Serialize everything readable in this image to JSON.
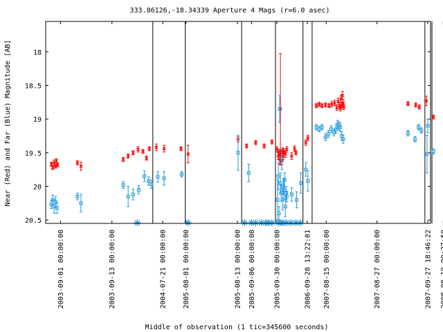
{
  "chart_data": {
    "type": "scatter",
    "title": "333.86126,-18.34339   Aperture 4 Mags (r=6.0 asec)",
    "xlabel": "Middle of observation (1 tic=345600 seconds)",
    "ylabel": "Near (Red) and Far (Blue) Magnitude [AB]",
    "ylim": [
      20.55,
      17.55
    ],
    "y_reversed": true,
    "xlim": [
      0,
      546
    ],
    "yticks": [
      "18",
      "18.5",
      "19",
      "19.5",
      "20",
      "20.5"
    ],
    "ytick_values": [
      18,
      18.5,
      19,
      19.5,
      20,
      20.5
    ],
    "xticks": [
      {
        "x": 21,
        "label": "2003-09-01 00:00:00"
      },
      {
        "x": 94,
        "label": "2003-09-13 00:00:00"
      },
      {
        "x": 166,
        "label": "2004-07-21 00:00:00"
      },
      {
        "x": 199,
        "label": "2005-08-01 00:00:00"
      },
      {
        "x": 272,
        "label": "2005-08-13 00:00:00"
      },
      {
        "x": 292,
        "label": "2005-09-06 00:00:00"
      },
      {
        "x": 328,
        "label": "2005-09-30 00:00:00"
      },
      {
        "x": 371,
        "label": "2006-09-28 13:22:01"
      },
      {
        "x": 398,
        "label": "2007-08-15 00:00:00"
      },
      {
        "x": 470,
        "label": "2007-08-27 00:00:00"
      },
      {
        "x": 542,
        "label": "2007-09-27 18:46:22"
      },
      {
        "x": 564,
        "label": "2008-08-19 09:27:59"
      }
    ],
    "separators": [
      152,
      198,
      278,
      326,
      365,
      378,
      538,
      548
    ],
    "markers_x": [
      130,
      202,
      282,
      292,
      298,
      306,
      312,
      316,
      321,
      330,
      334,
      337,
      342,
      348,
      355,
      361
    ],
    "series": [
      {
        "color": "#ff0000",
        "marker": "x",
        "points": [
          {
            "x": 8,
            "y": 19.67,
            "e": 0.03
          },
          {
            "x": 10,
            "y": 19.72,
            "e": 0.03
          },
          {
            "x": 12,
            "y": 19.65,
            "e": 0.04
          },
          {
            "x": 14,
            "y": 19.7,
            "e": 0.03
          },
          {
            "x": 15,
            "y": 19.62,
            "e": 0.03
          },
          {
            "x": 17,
            "y": 19.68,
            "e": 0.03
          },
          {
            "x": 45,
            "y": 19.65,
            "e": 0.03
          },
          {
            "x": 50,
            "y": 19.7,
            "e": 0.06
          },
          {
            "x": 110,
            "y": 19.6,
            "e": 0.03
          },
          {
            "x": 117,
            "y": 19.55,
            "e": 0.03
          },
          {
            "x": 124,
            "y": 19.5,
            "e": 0.03
          },
          {
            "x": 131,
            "y": 19.45,
            "e": 0.04
          },
          {
            "x": 138,
            "y": 19.48,
            "e": 0.03
          },
          {
            "x": 143,
            "y": 19.58,
            "e": 0.03
          },
          {
            "x": 147,
            "y": 19.44,
            "e": 0.03
          },
          {
            "x": 157,
            "y": 19.42,
            "e": 0.05
          },
          {
            "x": 168,
            "y": 19.44,
            "e": 0.05
          },
          {
            "x": 192,
            "y": 19.44,
            "e": 0.03
          },
          {
            "x": 202,
            "y": 19.52,
            "e": 0.13
          },
          {
            "x": 273,
            "y": 19.3,
            "e": 0.04
          },
          {
            "x": 285,
            "y": 19.4,
            "e": 0.03
          },
          {
            "x": 298,
            "y": 19.35,
            "e": 0.03
          },
          {
            "x": 310,
            "y": 19.4,
            "e": 0.03
          },
          {
            "x": 321,
            "y": 19.34,
            "e": 0.03
          },
          {
            "x": 328,
            "y": 19.45,
            "e": 0.04
          },
          {
            "x": 330,
            "y": 19.55,
            "e": 0.05
          },
          {
            "x": 331,
            "y": 19.49,
            "e": 0.04
          },
          {
            "x": 332,
            "y": 19.6,
            "e": 0.08
          },
          {
            "x": 333,
            "y": 18.85,
            "e": 0.82
          },
          {
            "x": 334,
            "y": 19.5,
            "e": 0.04
          },
          {
            "x": 335,
            "y": 19.62,
            "e": 0.06
          },
          {
            "x": 336,
            "y": 19.47,
            "e": 0.04
          },
          {
            "x": 337,
            "y": 19.55,
            "e": 0.05
          },
          {
            "x": 338,
            "y": 19.48,
            "e": 0.04
          },
          {
            "x": 340,
            "y": 19.52,
            "e": 0.05
          },
          {
            "x": 342,
            "y": 19.45,
            "e": 0.04
          },
          {
            "x": 349,
            "y": 19.55,
            "e": 0.05
          },
          {
            "x": 353,
            "y": 19.44,
            "e": 0.04
          },
          {
            "x": 355,
            "y": 19.5,
            "e": 0.03
          },
          {
            "x": 369,
            "y": 19.35,
            "e": 0.04
          },
          {
            "x": 372,
            "y": 19.28,
            "e": 0.04
          },
          {
            "x": 384,
            "y": 18.8,
            "e": 0.03
          },
          {
            "x": 388,
            "y": 18.78,
            "e": 0.03
          },
          {
            "x": 392,
            "y": 18.8,
            "e": 0.03
          },
          {
            "x": 397,
            "y": 18.79,
            "e": 0.03
          },
          {
            "x": 402,
            "y": 18.8,
            "e": 0.03
          },
          {
            "x": 406,
            "y": 18.78,
            "e": 0.04
          },
          {
            "x": 410,
            "y": 18.76,
            "e": 0.04
          },
          {
            "x": 413,
            "y": 18.83,
            "e": 0.04
          },
          {
            "x": 415,
            "y": 18.74,
            "e": 0.05
          },
          {
            "x": 417,
            "y": 18.8,
            "e": 0.04
          },
          {
            "x": 418,
            "y": 18.84,
            "e": 0.04
          },
          {
            "x": 419,
            "y": 18.7,
            "e": 0.05
          },
          {
            "x": 420,
            "y": 18.8,
            "e": 0.04
          },
          {
            "x": 421,
            "y": 18.65,
            "e": 0.06
          },
          {
            "x": 422,
            "y": 18.76,
            "e": 0.05
          },
          {
            "x": 423,
            "y": 18.82,
            "e": 0.04
          },
          {
            "x": 514,
            "y": 18.77,
            "e": 0.03
          },
          {
            "x": 525,
            "y": 18.79,
            "e": 0.03
          },
          {
            "x": 530,
            "y": 18.82,
            "e": 0.03
          },
          {
            "x": 540,
            "y": 18.73,
            "e": 0.07
          },
          {
            "x": 550,
            "y": 18.97,
            "e": 0.03
          }
        ]
      },
      {
        "color": "#2299dd",
        "marker": "square",
        "points": [
          {
            "x": 8,
            "y": 20.27,
            "e": 0.06
          },
          {
            "x": 10,
            "y": 20.2,
            "e": 0.07
          },
          {
            "x": 12,
            "y": 20.3,
            "e": 0.1
          },
          {
            "x": 14,
            "y": 20.23,
            "e": 0.08
          },
          {
            "x": 16,
            "y": 20.32,
            "e": 0.08
          },
          {
            "x": 45,
            "y": 20.15,
            "e": 0.05
          },
          {
            "x": 50,
            "y": 20.25,
            "e": 0.13
          },
          {
            "x": 110,
            "y": 19.98,
            "e": 0.05
          },
          {
            "x": 117,
            "y": 20.15,
            "e": 0.15
          },
          {
            "x": 124,
            "y": 20.12,
            "e": 0.08
          },
          {
            "x": 132,
            "y": 20.05,
            "e": 0.06
          },
          {
            "x": 140,
            "y": 19.85,
            "e": 0.08
          },
          {
            "x": 146,
            "y": 19.92,
            "e": 0.06
          },
          {
            "x": 150,
            "y": 19.97,
            "e": 0.06
          },
          {
            "x": 159,
            "y": 19.86,
            "e": 0.08
          },
          {
            "x": 168,
            "y": 19.88,
            "e": 0.1
          },
          {
            "x": 193,
            "y": 19.82,
            "e": 0.04
          },
          {
            "x": 273,
            "y": 19.5,
            "e": 0.26
          },
          {
            "x": 288,
            "y": 19.8,
            "e": 0.13
          },
          {
            "x": 329,
            "y": 20.2,
            "e": 0.3
          },
          {
            "x": 330,
            "y": 19.85,
            "e": 0.2
          },
          {
            "x": 331,
            "y": 20.4,
            "e": 0.1
          },
          {
            "x": 332,
            "y": 18.85,
            "e": 0.2
          },
          {
            "x": 333,
            "y": 19.95,
            "e": 0.15
          },
          {
            "x": 334,
            "y": 20.1,
            "e": 0.12
          },
          {
            "x": 335,
            "y": 19.6,
            "e": 0.15
          },
          {
            "x": 336,
            "y": 20.2,
            "e": 0.15
          },
          {
            "x": 337,
            "y": 20.0,
            "e": 0.12
          },
          {
            "x": 338,
            "y": 20.05,
            "e": 0.15
          },
          {
            "x": 339,
            "y": 19.9,
            "e": 0.1
          },
          {
            "x": 340,
            "y": 20.3,
            "e": 0.15
          },
          {
            "x": 341,
            "y": 20.1,
            "e": 0.1
          },
          {
            "x": 342,
            "y": 20.15,
            "e": 0.08
          },
          {
            "x": 349,
            "y": 20.12,
            "e": 0.1
          },
          {
            "x": 356,
            "y": 20.2,
            "e": 0.12
          },
          {
            "x": 362,
            "y": 19.95,
            "e": 0.15
          },
          {
            "x": 369,
            "y": 19.75,
            "e": 0.1
          },
          {
            "x": 372,
            "y": 19.92,
            "e": 0.15
          },
          {
            "x": 384,
            "y": 19.12,
            "e": 0.04
          },
          {
            "x": 388,
            "y": 19.15,
            "e": 0.04
          },
          {
            "x": 392,
            "y": 19.12,
            "e": 0.04
          },
          {
            "x": 397,
            "y": 19.27,
            "e": 0.05
          },
          {
            "x": 401,
            "y": 19.22,
            "e": 0.05
          },
          {
            "x": 405,
            "y": 19.15,
            "e": 0.05
          },
          {
            "x": 409,
            "y": 19.2,
            "e": 0.05
          },
          {
            "x": 412,
            "y": 19.15,
            "e": 0.06
          },
          {
            "x": 414,
            "y": 19.08,
            "e": 0.06
          },
          {
            "x": 416,
            "y": 19.1,
            "e": 0.06
          },
          {
            "x": 418,
            "y": 19.12,
            "e": 0.06
          },
          {
            "x": 420,
            "y": 19.25,
            "e": 0.06
          },
          {
            "x": 422,
            "y": 19.3,
            "e": 0.06
          },
          {
            "x": 514,
            "y": 19.21,
            "e": 0.04
          },
          {
            "x": 524,
            "y": 19.3,
            "e": 0.04
          },
          {
            "x": 529,
            "y": 19.12,
            "e": 0.04
          },
          {
            "x": 533,
            "y": 19.17,
            "e": 0.04
          },
          {
            "x": 541,
            "y": 19.52,
            "e": 0.28
          },
          {
            "x": 542,
            "y": 19.1,
            "e": 0.1
          },
          {
            "x": 550,
            "y": 19.48,
            "e": 0.04
          }
        ]
      }
    ]
  }
}
